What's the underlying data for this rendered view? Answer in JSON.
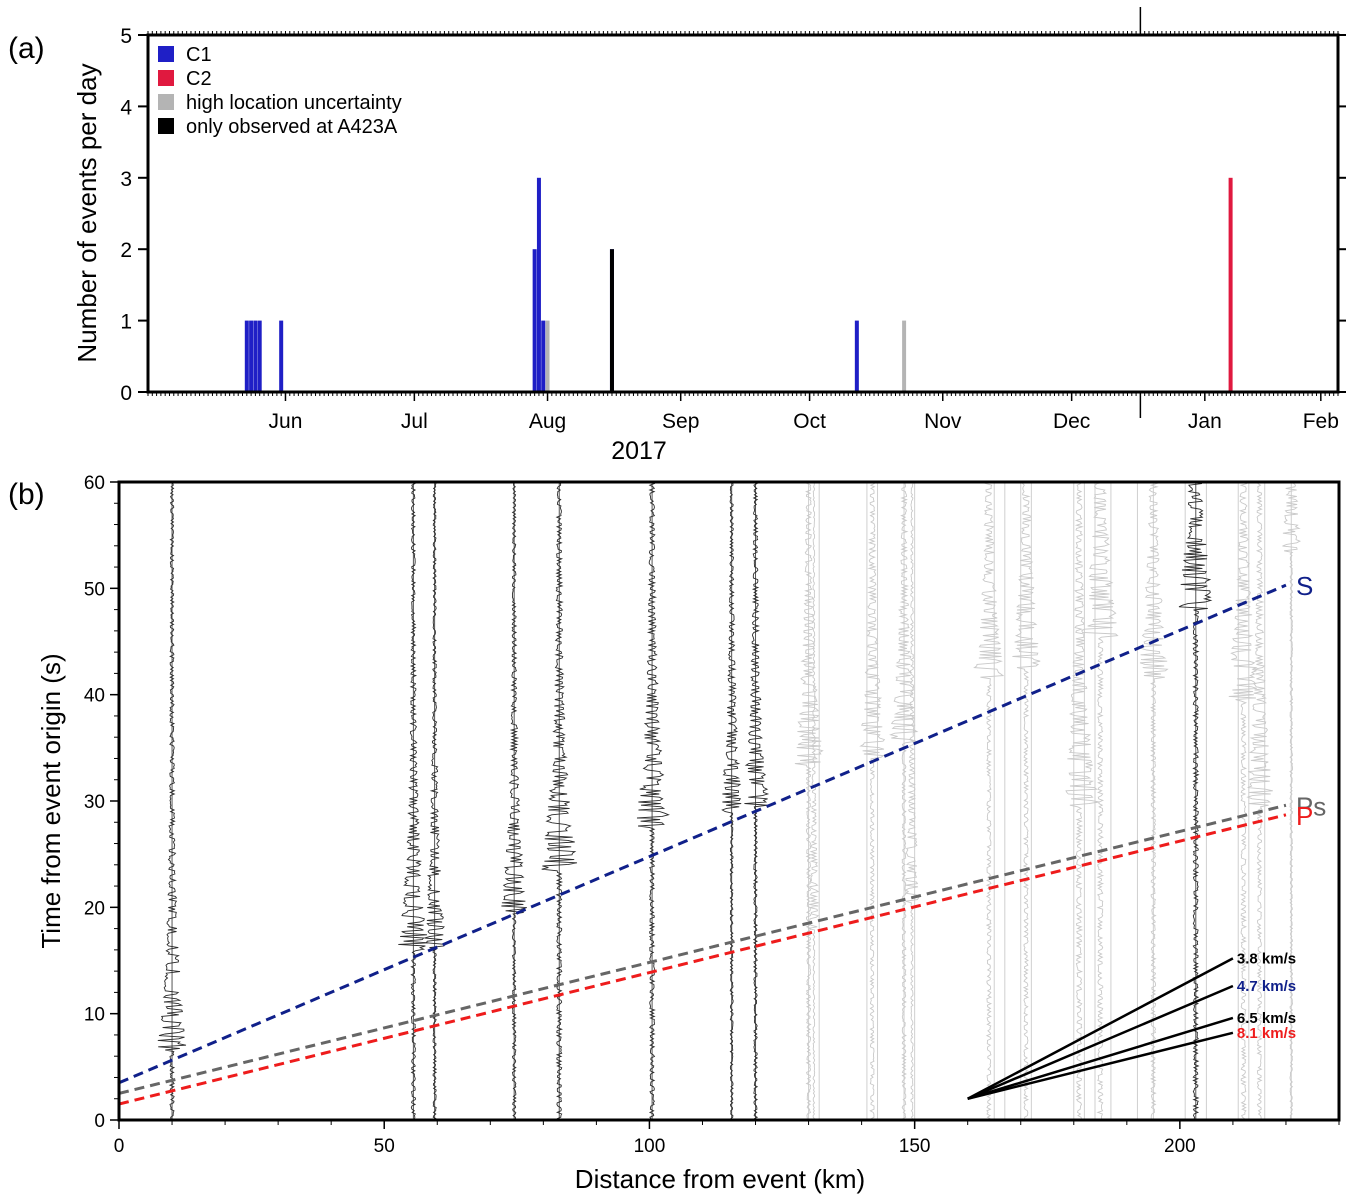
{
  "chart_data": [
    {
      "type": "bar",
      "panel_label": "(a)",
      "ylabel": "Number of events per day",
      "ylim": [
        0,
        5
      ],
      "yticks": [
        0,
        1,
        2,
        3,
        4,
        5
      ],
      "xlim": [
        "2017-05-15",
        "2018-02-16"
      ],
      "xticks": [
        {
          "label": "Jun",
          "date": "2017-06-16"
        },
        {
          "label": "Jul",
          "date": "2017-07-16"
        },
        {
          "label": "Aug",
          "date": "2017-08-16"
        },
        {
          "label": "Sep",
          "date": "2017-09-16"
        },
        {
          "label": "Oct",
          "date": "2017-10-16"
        },
        {
          "label": "Nov",
          "date": "2017-11-16"
        },
        {
          "label": "Dec",
          "date": "2017-12-16"
        },
        {
          "label": "Jan",
          "date": "2018-01-16"
        },
        {
          "label": "Feb",
          "date": "2018-02-12"
        }
      ],
      "year_label": "2017",
      "year_divider": "2018-01-01",
      "legend_position": "top-left",
      "colors": {
        "C1": "#1f1fc6",
        "C2": "#e0193f",
        "high": "#b4b4b4",
        "only": "#000000"
      },
      "legend": [
        {
          "key": "C1",
          "label": "C1"
        },
        {
          "key": "C2",
          "label": "C2"
        },
        {
          "key": "high",
          "label": "high location uncertainty"
        },
        {
          "key": "only",
          "label": "only observed at A423A"
        }
      ],
      "bars": [
        {
          "date": "2017-06-07",
          "C1": 1,
          "C2": 0,
          "high": 0,
          "only": 0
        },
        {
          "date": "2017-06-08",
          "C1": 1,
          "C2": 0,
          "high": 0,
          "only": 0
        },
        {
          "date": "2017-06-09",
          "C1": 1,
          "C2": 0,
          "high": 0,
          "only": 0
        },
        {
          "date": "2017-06-10",
          "C1": 1,
          "C2": 0,
          "high": 0,
          "only": 0
        },
        {
          "date": "2017-06-15",
          "C1": 1,
          "C2": 0,
          "high": 0,
          "only": 0
        },
        {
          "date": "2017-08-13",
          "C1": 2,
          "C2": 0,
          "high": 0,
          "only": 0
        },
        {
          "date": "2017-08-14",
          "C1": 3,
          "C2": 0,
          "high": 0,
          "only": 0
        },
        {
          "date": "2017-08-15",
          "C1": 1,
          "C2": 0,
          "high": 0,
          "only": 0
        },
        {
          "date": "2017-08-16",
          "C1": 0,
          "C2": 0,
          "high": 1,
          "only": 0
        },
        {
          "date": "2017-08-31",
          "C1": 2,
          "C2": 0,
          "high": 0,
          "only": 2
        },
        {
          "date": "2017-10-27",
          "C1": 1,
          "C2": 0,
          "high": 0,
          "only": 0
        },
        {
          "date": "2017-11-07",
          "C1": 0,
          "C2": 0,
          "high": 1,
          "only": 0
        },
        {
          "date": "2018-01-22",
          "C1": 0,
          "C2": 3,
          "high": 0,
          "only": 0
        }
      ]
    },
    {
      "type": "line",
      "panel_label": "(b)",
      "xlabel": "Distance from event (km)",
      "ylabel": "Time from event origin (s)",
      "xlim": [
        0,
        230
      ],
      "ylim": [
        0,
        60
      ],
      "xticks": [
        0,
        50,
        100,
        150,
        200
      ],
      "yticks": [
        0,
        10,
        20,
        30,
        40,
        50,
        60
      ],
      "phase_lines": [
        {
          "name": "S",
          "x": [
            0,
            220
          ],
          "y": [
            3.5,
            50.3
          ],
          "color": "#10208a"
        },
        {
          "name": "Ps",
          "x": [
            0,
            220
          ],
          "y": [
            2.5,
            29.6
          ],
          "color": "#666666"
        },
        {
          "name": "P",
          "x": [
            0,
            220
          ],
          "y": [
            1.5,
            28.7
          ],
          "color": "#ee1c1c"
        }
      ],
      "velocity_fan": {
        "origin": [
          160,
          2
        ],
        "rays": [
          {
            "label": "3.8 km/s",
            "x": 210,
            "y": 15.2,
            "color": "#000000"
          },
          {
            "label": "4.7 km/s",
            "x": 210,
            "y": 12.6,
            "color": "#10208a"
          },
          {
            "label": "6.5 km/s",
            "x": 210,
            "y": 9.6,
            "color": "#000000"
          },
          {
            "label": "8.1 km/s",
            "x": 210,
            "y": 8.2,
            "color": "#ee1c1c"
          }
        ]
      },
      "traces": [
        {
          "x": 10,
          "kind": "dark",
          "arrival": 7,
          "amp": 2.6
        },
        {
          "x": 55.5,
          "kind": "dark",
          "arrival": 16.5,
          "amp": 2.6
        },
        {
          "x": 59.5,
          "kind": "dark",
          "arrival": 16.7,
          "amp": 2.0
        },
        {
          "x": 74.5,
          "kind": "dark",
          "arrival": 20,
          "amp": 2.2
        },
        {
          "x": 83,
          "kind": "dark",
          "arrival": 24,
          "amp": 3.2
        },
        {
          "x": 100.5,
          "kind": "dark",
          "arrival": 28,
          "amp": 3.0
        },
        {
          "x": 115.5,
          "kind": "dark",
          "arrival": 29.5,
          "amp": 1.8
        },
        {
          "x": 120,
          "kind": "dark",
          "arrival": 30,
          "amp": 2.2
        },
        {
          "x": 203,
          "kind": "dark",
          "arrival": 48.5,
          "amp": 3.2
        },
        {
          "x": 130,
          "kind": "gray",
          "arrival": 34,
          "amp": 2.6
        },
        {
          "x": 131,
          "kind": "gray",
          "arrival": 18.5,
          "amp": 1.0
        },
        {
          "x": 142,
          "kind": "gray",
          "arrival": 34.5,
          "amp": 2.4
        },
        {
          "x": 148,
          "kind": "gray",
          "arrival": 36,
          "amp": 2.4
        },
        {
          "x": 149.5,
          "kind": "gray",
          "arrival": 21,
          "amp": 1.4
        },
        {
          "x": 164,
          "kind": "gray",
          "arrival": 42,
          "amp": 2.6
        },
        {
          "x": 171,
          "kind": "gray",
          "arrival": 43,
          "amp": 2.6
        },
        {
          "x": 181,
          "kind": "gray",
          "arrival": 30,
          "amp": 3.4
        },
        {
          "x": 185,
          "kind": "gray",
          "arrival": 46,
          "amp": 3.2
        },
        {
          "x": 195,
          "kind": "gray",
          "arrival": 42,
          "amp": 2.8
        },
        {
          "x": 212,
          "kind": "gray",
          "arrival": 40,
          "amp": 3.0
        },
        {
          "x": 215,
          "kind": "gray",
          "arrival": 30,
          "amp": 2.6
        },
        {
          "x": 221,
          "kind": "gray",
          "arrival": 54,
          "amp": 1.6
        }
      ],
      "thin_traces": [
        {
          "x": 10,
          "kind": "dark"
        },
        {
          "x": 55.5,
          "kind": "dark"
        },
        {
          "x": 59.5,
          "kind": "dark"
        },
        {
          "x": 74.5,
          "kind": "dark"
        },
        {
          "x": 83,
          "kind": "dark"
        },
        {
          "x": 100.5,
          "kind": "dark"
        },
        {
          "x": 115.5,
          "kind": "dark"
        },
        {
          "x": 120,
          "kind": "dark"
        },
        {
          "x": 203,
          "kind": "dark"
        },
        {
          "x": 130,
          "kind": "gray"
        },
        {
          "x": 132,
          "kind": "gray"
        },
        {
          "x": 141,
          "kind": "gray"
        },
        {
          "x": 143,
          "kind": "gray"
        },
        {
          "x": 148,
          "kind": "gray"
        },
        {
          "x": 150,
          "kind": "gray"
        },
        {
          "x": 165,
          "kind": "gray"
        },
        {
          "x": 167,
          "kind": "gray"
        },
        {
          "x": 170,
          "kind": "gray"
        },
        {
          "x": 172,
          "kind": "gray"
        },
        {
          "x": 180,
          "kind": "gray"
        },
        {
          "x": 182,
          "kind": "gray"
        },
        {
          "x": 184,
          "kind": "gray"
        },
        {
          "x": 187,
          "kind": "gray"
        },
        {
          "x": 192,
          "kind": "gray"
        },
        {
          "x": 195,
          "kind": "gray"
        },
        {
          "x": 201,
          "kind": "gray"
        },
        {
          "x": 205,
          "kind": "gray"
        },
        {
          "x": 211,
          "kind": "gray"
        },
        {
          "x": 213,
          "kind": "gray"
        },
        {
          "x": 216,
          "kind": "gray"
        },
        {
          "x": 221,
          "kind": "gray"
        }
      ]
    }
  ]
}
